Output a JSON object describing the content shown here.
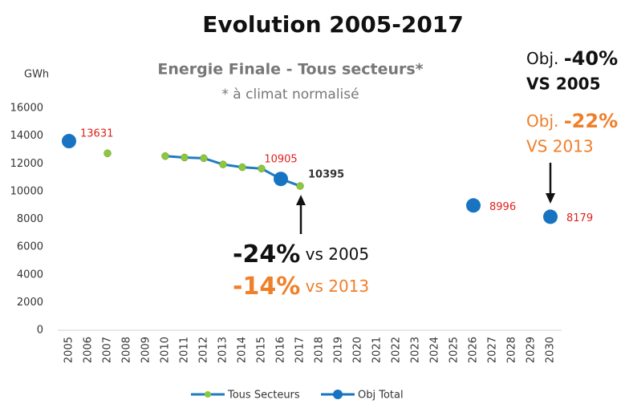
{
  "chart_data": {
    "type": "line",
    "title": "Evolution 2005-2017",
    "subtitle": "Energie Finale - Tous secteurs*",
    "note": "* à climat normalisé",
    "y_label": "GWh",
    "categories": [
      "2005",
      "2006",
      "2007",
      "2008",
      "2009",
      "2010",
      "2011",
      "2012",
      "2013",
      "2014",
      "2015",
      "2016",
      "2017",
      "2018",
      "2019",
      "2020",
      "2021",
      "2022",
      "2023",
      "2024",
      "2025",
      "2026",
      "2027",
      "2028",
      "2029",
      "2030"
    ],
    "series": [
      {
        "name": "Tous Secteurs",
        "color": "#1f7bc4",
        "marker_color": "#8dc63f",
        "values": [
          null,
          null,
          12750,
          null,
          null,
          12550,
          12450,
          12400,
          11950,
          11750,
          11650,
          10905,
          10395,
          null,
          null,
          null,
          null,
          null,
          null,
          null,
          null,
          null,
          null,
          null,
          null,
          null
        ],
        "value_labels": [
          null,
          null,
          null,
          null,
          null,
          null,
          null,
          null,
          null,
          null,
          null,
          null,
          "10395",
          null,
          null,
          null,
          null,
          null,
          null,
          null,
          null,
          null,
          null,
          null,
          null,
          null
        ],
        "label_color": "#333333"
      },
      {
        "name": "Obj Total",
        "color": "#1874c0",
        "marker_color": "#1874c0",
        "values": [
          13631,
          null,
          null,
          null,
          null,
          null,
          null,
          null,
          null,
          null,
          null,
          10905,
          null,
          null,
          null,
          null,
          null,
          null,
          null,
          null,
          null,
          8996,
          null,
          null,
          null,
          8179
        ],
        "value_labels": [
          "13631",
          null,
          null,
          null,
          null,
          null,
          null,
          null,
          null,
          null,
          null,
          "10905",
          null,
          null,
          null,
          null,
          null,
          null,
          null,
          null,
          null,
          "8996",
          null,
          null,
          null,
          "8179"
        ],
        "label_color": "#e0201b"
      }
    ],
    "ylim": [
      0,
      16000
    ],
    "yticks": [
      0,
      2000,
      4000,
      6000,
      8000,
      10000,
      12000,
      14000,
      16000
    ],
    "annotations": [
      {
        "bold": "-24%",
        "text": " vs 2005",
        "color": "#111111"
      },
      {
        "bold": "-14%",
        "text": " vs 2013",
        "color": "#f07f2a"
      },
      {
        "text": "Obj. ",
        "bold": "-40%",
        "line2": "VS 2005",
        "color": "#111111"
      },
      {
        "text": "Obj. ",
        "bold": "-22%",
        "line2": "VS 2013",
        "color": "#f07f2a"
      }
    ]
  }
}
